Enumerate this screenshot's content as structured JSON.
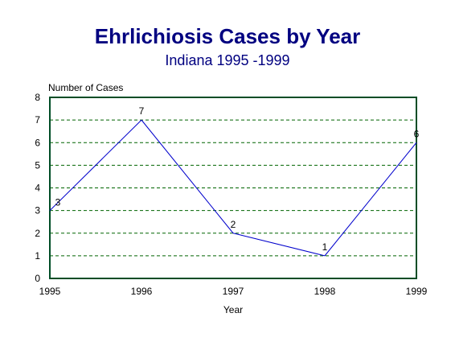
{
  "chart_data": {
    "type": "line",
    "title": "Ehrlichiosis Cases by Year",
    "subtitle": "Indiana 1995 -1999",
    "xlabel": "Year",
    "ylabel": "Number of Cases",
    "x": [
      "1995",
      "1996",
      "1997",
      "1998",
      "1999"
    ],
    "values": [
      3,
      7,
      2,
      1,
      6
    ],
    "data_labels": [
      "3",
      "7",
      "2",
      "1",
      "6"
    ],
    "ylim": [
      0,
      8
    ],
    "yticks": [
      "0",
      "1",
      "2",
      "3",
      "4",
      "5",
      "6",
      "7",
      "8"
    ],
    "grid": "dashed horizontal",
    "legend": "none",
    "colors": {
      "title": "#000080",
      "line": "#0000cc",
      "grid": "#006400",
      "frame": "#004d26"
    }
  }
}
